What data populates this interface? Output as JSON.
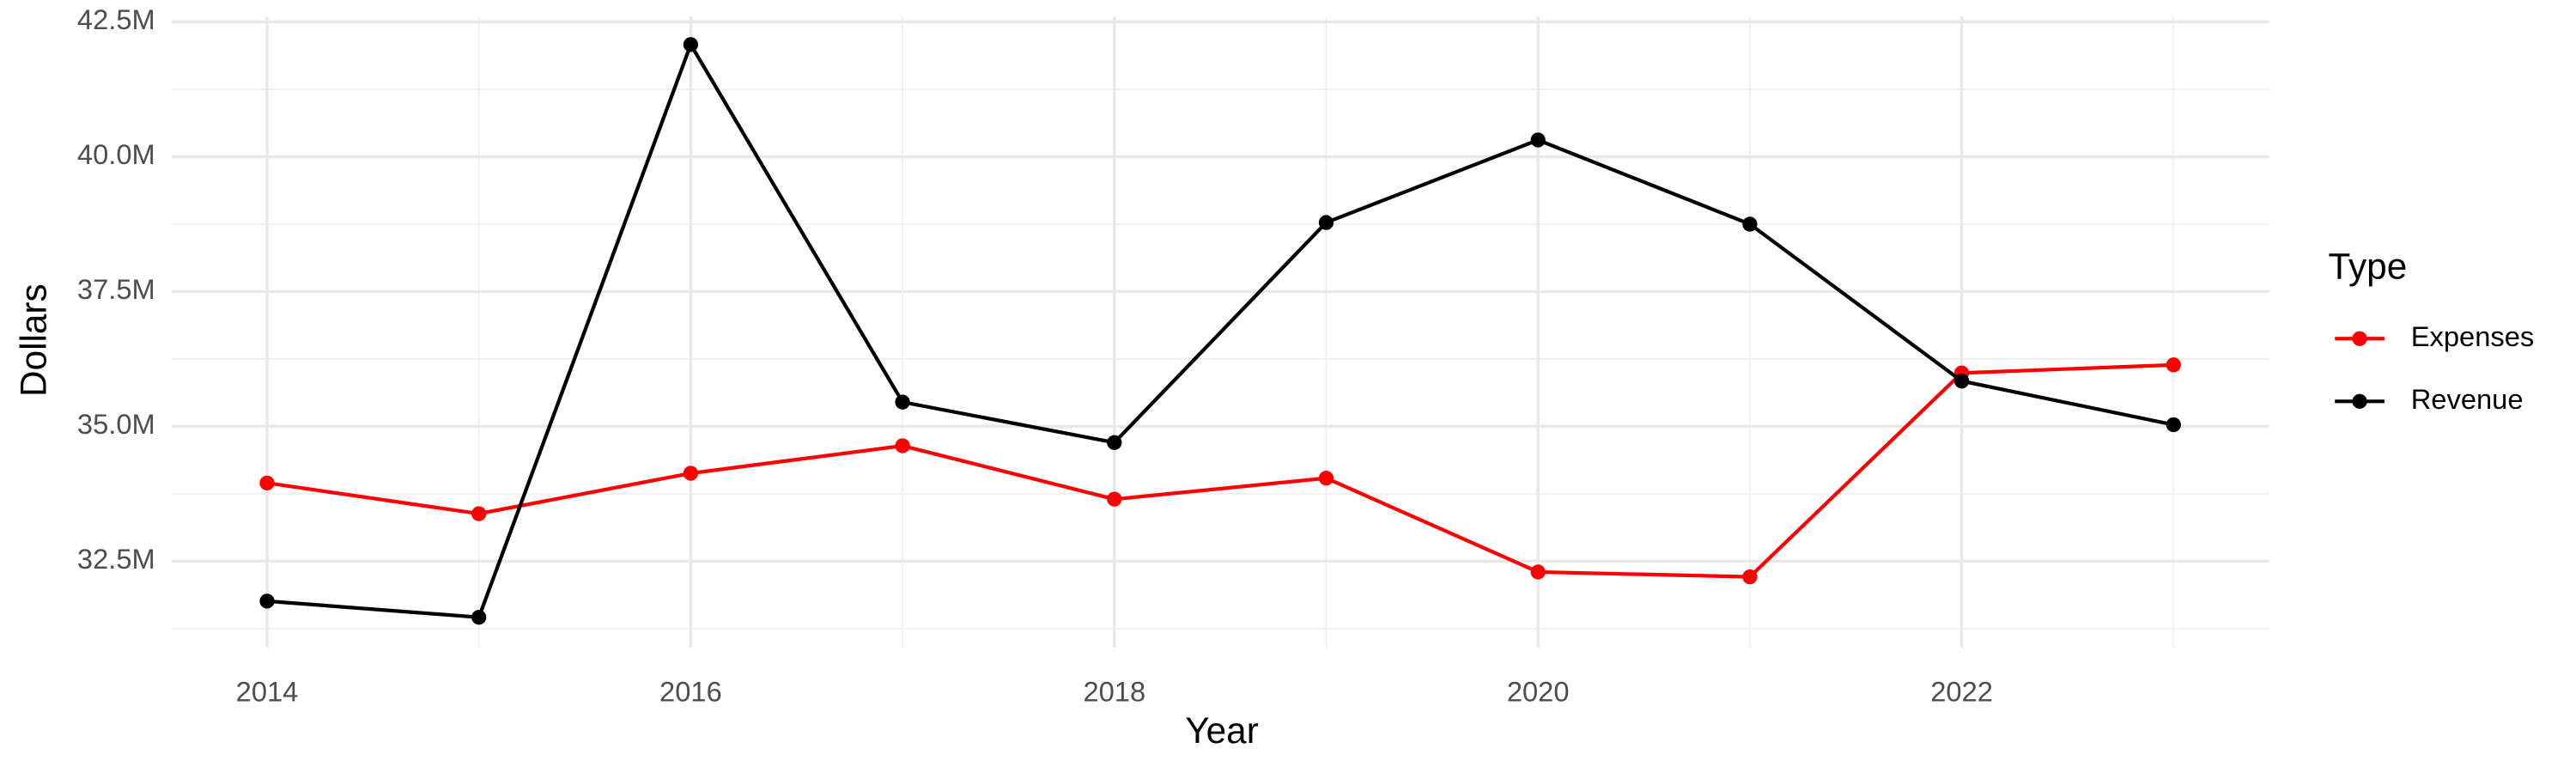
{
  "chart_data": {
    "type": "line",
    "x_label": "Year",
    "y_label": "Dollars",
    "legend_title": "Type",
    "legend_position": "right",
    "grid": true,
    "x": [
      2014,
      2015,
      2016,
      2017,
      2018,
      2019,
      2020,
      2021,
      2022,
      2023
    ],
    "series": [
      {
        "name": "Expenses",
        "color": "#ff0000",
        "values": [
          33950000,
          33380000,
          34130000,
          34640000,
          33650000,
          34040000,
          32300000,
          32210000,
          35990000,
          36140000
        ]
      },
      {
        "name": "Revenue",
        "color": "#000000",
        "values": [
          31760000,
          31460000,
          42080000,
          35450000,
          34700000,
          38780000,
          40310000,
          38750000,
          35840000,
          35030000
        ]
      }
    ],
    "xlim": [
      2013.55,
      2023.45
    ],
    "xticks": [
      2014,
      2016,
      2018,
      2020,
      2022
    ],
    "ylim": [
      30900000,
      42600000
    ],
    "yticks": [
      {
        "value": 32500000,
        "label": "32.5M"
      },
      {
        "value": 35000000,
        "label": "35.0M"
      },
      {
        "value": 37500000,
        "label": "37.5M"
      },
      {
        "value": 40000000,
        "label": "40.0M"
      },
      {
        "value": 42500000,
        "label": "42.5M"
      }
    ]
  }
}
